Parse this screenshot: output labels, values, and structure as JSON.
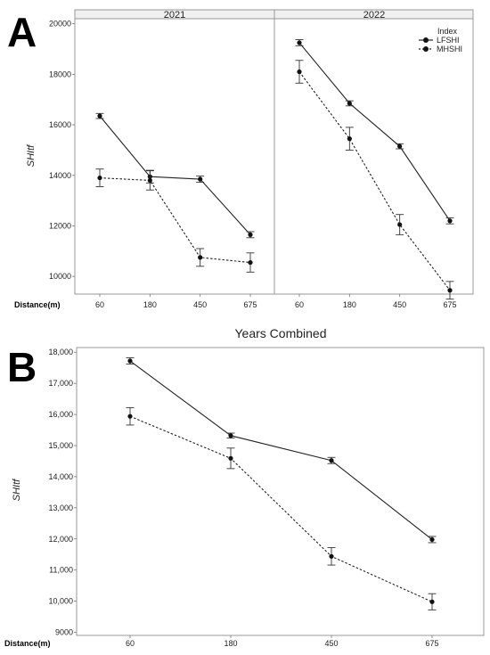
{
  "panels": {
    "a_label": "A",
    "b_label": "B"
  },
  "chart_data": [
    {
      "type": "line",
      "panel": "A",
      "facets": [
        "2021",
        "2022"
      ],
      "categories": [
        "60",
        "180",
        "450",
        "675"
      ],
      "xlabel": "Distance(m)",
      "ylabel": "SHItf",
      "ylim": [
        9300,
        20200
      ],
      "yticks": [
        "10000",
        "12000",
        "14000",
        "16000",
        "18000",
        "20000"
      ],
      "legend": {
        "title": "Index",
        "position": "top-right",
        "entries": [
          "LFSHI",
          "MHSHI"
        ]
      },
      "series": [
        {
          "name": "LFSHI",
          "facet_values": {
            "2021": {
              "values": [
                16350,
                13950,
                13850,
                11650
              ],
              "err": [
                100,
                250,
                120,
                120
              ]
            },
            "2022": {
              "values": [
                19250,
                16850,
                15150,
                12200
              ],
              "err": [
                120,
                100,
                100,
                120
              ]
            }
          }
        },
        {
          "name": "MHSHI",
          "facet_values": {
            "2021": {
              "values": [
                13900,
                13800,
                10750,
                10550
              ],
              "err": [
                350,
                380,
                350,
                380
              ]
            },
            "2022": {
              "values": [
                18100,
                15450,
                12050,
                9450
              ],
              "err": [
                450,
                450,
                400,
                350
              ]
            }
          }
        }
      ]
    },
    {
      "type": "line",
      "panel": "B",
      "title": "Years Combined",
      "categories": [
        "60",
        "180",
        "450",
        "675"
      ],
      "xlabel": "Distance(m)",
      "ylabel": "SHItf",
      "ylim": [
        8900,
        18150
      ],
      "yticks": [
        "9000",
        "10,000",
        "11,000",
        "12,000",
        "13,000",
        "14,000",
        "15,000",
        "16,000",
        "17,000",
        "18,000"
      ],
      "series": [
        {
          "name": "LFSHI",
          "values": [
            17720,
            15320,
            14520,
            11980
          ],
          "err": [
            100,
            80,
            100,
            100
          ]
        },
        {
          "name": "MHSHI",
          "values": [
            15940,
            14590,
            11440,
            9980
          ],
          "err": [
            280,
            330,
            280,
            260
          ]
        }
      ]
    }
  ]
}
